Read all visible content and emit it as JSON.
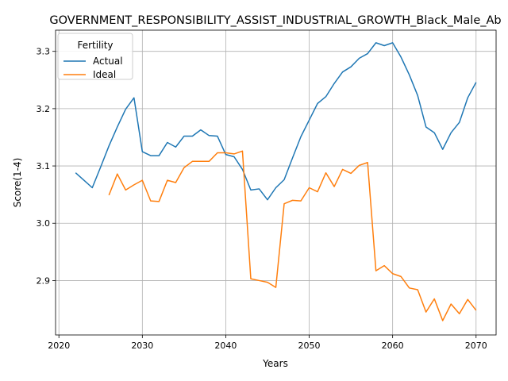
{
  "chart_data": {
    "type": "line",
    "title": "GOVERNMENT_RESPONSIBILITY_ASSIST_INDUSTRIAL_GROWTH_Black_Male_Ab",
    "xlabel": "Years",
    "ylabel": "Score(1-4)",
    "xlim": [
      2019.6,
      2072.4
    ],
    "ylim": [
      2.805,
      3.337
    ],
    "xticks": [
      2020,
      2030,
      2040,
      2050,
      2060,
      2070
    ],
    "xtick_labels": [
      "2020",
      "2030",
      "2040",
      "2050",
      "2060",
      "2070"
    ],
    "yticks": [
      2.9,
      3.0,
      3.1,
      3.2,
      3.3
    ],
    "ytick_labels": [
      "2.9",
      "3.0",
      "3.1",
      "3.2",
      "3.3"
    ],
    "grid": true,
    "legend": {
      "title": "Fertility",
      "placement": "top-left"
    },
    "series": [
      {
        "name": "Actual",
        "color": "#1f77b4",
        "x": [
          2022,
          2023,
          2024,
          2025,
          2026,
          2027,
          2028,
          2029,
          2030,
          2031,
          2032,
          2033,
          2034,
          2035,
          2036,
          2037,
          2038,
          2039,
          2040,
          2041,
          2042,
          2043,
          2044,
          2045,
          2046,
          2047,
          2048,
          2049,
          2050,
          2051,
          2052,
          2053,
          2054,
          2055,
          2056,
          2057,
          2058,
          2059,
          2060,
          2061,
          2062,
          2063,
          2064,
          2065,
          2066,
          2067,
          2068,
          2069,
          2070
        ],
        "y": [
          3.088,
          3.075,
          3.062,
          3.098,
          3.135,
          3.168,
          3.199,
          3.219,
          3.125,
          3.118,
          3.118,
          3.141,
          3.133,
          3.152,
          3.152,
          3.163,
          3.153,
          3.152,
          3.12,
          3.116,
          3.094,
          3.058,
          3.06,
          3.041,
          3.062,
          3.076,
          3.114,
          3.151,
          3.18,
          3.209,
          3.221,
          3.244,
          3.264,
          3.273,
          3.288,
          3.296,
          3.315,
          3.31,
          3.315,
          3.29,
          3.259,
          3.223,
          3.168,
          3.158,
          3.129,
          3.158,
          3.176,
          3.219,
          3.246
        ]
      },
      {
        "name": "Ideal",
        "color": "#ff7f0e",
        "x": [
          2026,
          2027,
          2028,
          2029,
          2030,
          2031,
          2032,
          2033,
          2034,
          2035,
          2036,
          2037,
          2038,
          2039,
          2040,
          2041,
          2042,
          2043,
          2044,
          2045,
          2046,
          2047,
          2048,
          2049,
          2050,
          2051,
          2052,
          2053,
          2054,
          2055,
          2056,
          2057,
          2058,
          2059,
          2060,
          2061,
          2062,
          2063,
          2064,
          2065,
          2066,
          2067,
          2068,
          2069,
          2070
        ],
        "y": [
          3.049,
          3.086,
          3.058,
          3.067,
          3.075,
          3.039,
          3.038,
          3.075,
          3.071,
          3.097,
          3.108,
          3.108,
          3.108,
          3.123,
          3.123,
          3.121,
          3.126,
          2.903,
          2.9,
          2.897,
          2.888,
          3.034,
          3.04,
          3.039,
          3.062,
          3.055,
          3.088,
          3.064,
          3.094,
          3.087,
          3.101,
          3.106,
          2.917,
          2.926,
          2.912,
          2.907,
          2.887,
          2.884,
          2.845,
          2.868,
          2.83,
          2.859,
          2.842,
          2.867,
          2.848
        ]
      }
    ]
  }
}
